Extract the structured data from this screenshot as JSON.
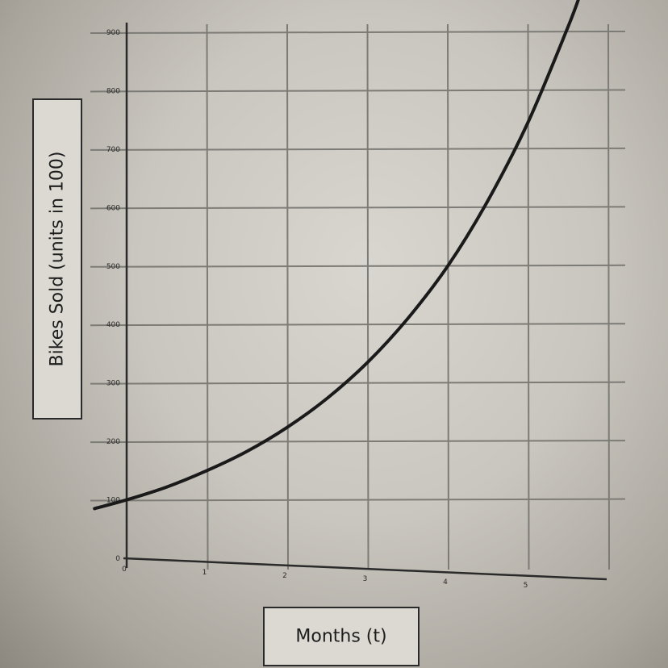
{
  "chart_data": {
    "type": "line",
    "title": "",
    "xlabel": "Months (t)",
    "ylabel": "Bikes Sold (units in 100)",
    "xlim": [
      0,
      6
    ],
    "ylim": [
      0,
      900
    ],
    "x_ticks": [
      "0",
      "1",
      "2",
      "3",
      "4",
      "5"
    ],
    "y_ticks": [
      "0",
      "100",
      "200",
      "300",
      "400",
      "500",
      "600",
      "700",
      "800",
      "900"
    ],
    "grid": true,
    "series": [
      {
        "x": [
          -0.4,
          0,
          0.5,
          1,
          1.5,
          2,
          2.5,
          3,
          3.5,
          4,
          4.5,
          5,
          5.5,
          5.65
        ],
        "y": [
          85,
          100,
          122,
          150,
          183,
          224,
          274,
          335,
          410,
          500,
          612,
          746,
          910,
          965
        ]
      }
    ]
  },
  "colors": {
    "curve": "#1a1a1a",
    "grid": "#7d7b76",
    "axis": "#2a2a2a"
  }
}
